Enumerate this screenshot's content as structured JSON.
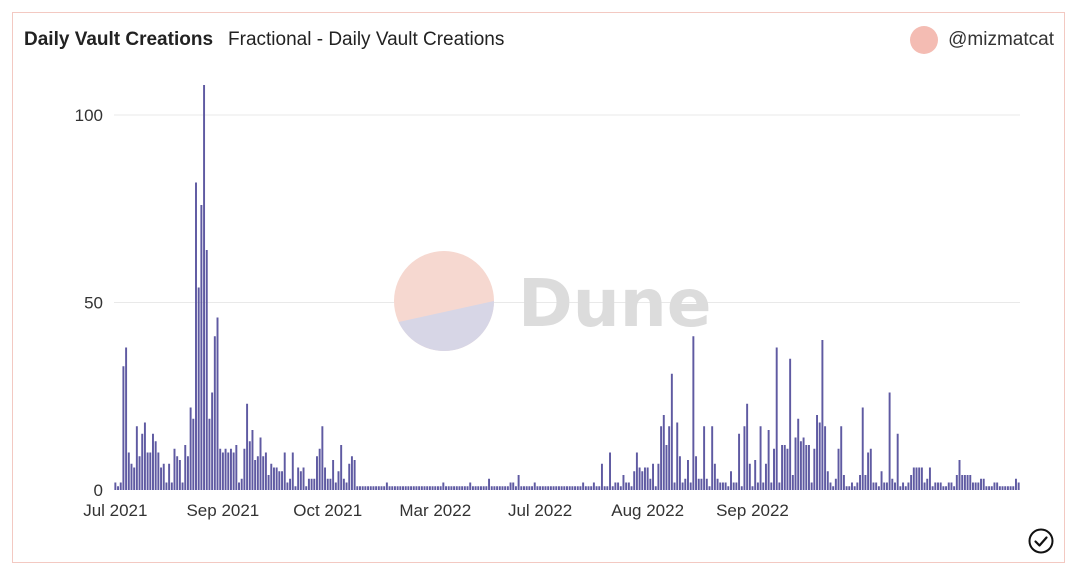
{
  "header": {
    "title": "Daily Vault Creations",
    "subtitle": "Fractional - Daily Vault Creations",
    "author": "@mizmatcat"
  },
  "watermark": {
    "text": "Dune"
  },
  "colors": {
    "bar": "#5f5aa2",
    "grid": "#e9e9e9",
    "avatar": "#f4bcb3",
    "card_border": "#f3c9c2",
    "watermark_top": "#f6d8d0",
    "watermark_bottom": "#d7d6e6",
    "watermark_text": "#dcdcdc"
  },
  "icons": {
    "status": "check-circle-icon",
    "logo": "dune-logo-icon"
  },
  "chart_data": {
    "type": "bar",
    "title": "Daily Vault Creations",
    "subtitle": "Fractional - Daily Vault Creations",
    "xlabel": "",
    "ylabel": "",
    "ylim": [
      0,
      108
    ],
    "yticks": [
      0,
      50,
      100
    ],
    "grid": true,
    "legend": "none",
    "x_ticks": [
      {
        "label": "Jul 2021",
        "index": 0
      },
      {
        "label": "Sep 2021",
        "index": 40
      },
      {
        "label": "Oct 2021",
        "index": 79
      },
      {
        "label": "Mar 2022",
        "index": 119
      },
      {
        "label": "Jul 2022",
        "index": 158
      },
      {
        "label": "Aug 2022",
        "index": 198
      },
      {
        "label": "Sep 2022",
        "index": 237
      }
    ],
    "series": [
      {
        "values": [
          2,
          1,
          2,
          33,
          38,
          10,
          7,
          6,
          17,
          9,
          15,
          18,
          10,
          10,
          15,
          13,
          10,
          6,
          7,
          2,
          7,
          2,
          11,
          9,
          8,
          2,
          12,
          9,
          22,
          19,
          82,
          54,
          76,
          108,
          64,
          19,
          26,
          41,
          46,
          11,
          10,
          11,
          10,
          11,
          10,
          12,
          2,
          3,
          11,
          23,
          13,
          16,
          8,
          9,
          14,
          9,
          10,
          4,
          7,
          6,
          6,
          5,
          5,
          10,
          2,
          3,
          10,
          1,
          6,
          5,
          6,
          1,
          3,
          3,
          3,
          9,
          11,
          17,
          6,
          3,
          3,
          8,
          2,
          5,
          12,
          3,
          2,
          7,
          9,
          8,
          1,
          1,
          1,
          1,
          1,
          1,
          1,
          1,
          1,
          1,
          1,
          2,
          1,
          1,
          1,
          1,
          1,
          1,
          1,
          1,
          1,
          1,
          1,
          1,
          1,
          1,
          1,
          1,
          1,
          1,
          1,
          1,
          2,
          1,
          1,
          1,
          1,
          1,
          1,
          1,
          1,
          1,
          2,
          1,
          1,
          1,
          1,
          1,
          1,
          3,
          1,
          1,
          1,
          1,
          1,
          1,
          1,
          2,
          2,
          1,
          4,
          1,
          1,
          1,
          1,
          1,
          2,
          1,
          1,
          1,
          1,
          1,
          1,
          1,
          1,
          1,
          1,
          1,
          1,
          1,
          1,
          1,
          1,
          1,
          2,
          1,
          1,
          1,
          2,
          1,
          1,
          7,
          1,
          1,
          10,
          1,
          2,
          2,
          1,
          4,
          2,
          2,
          1,
          5,
          10,
          6,
          5,
          6,
          6,
          3,
          7,
          1,
          7,
          17,
          20,
          12,
          17,
          31,
          2,
          18,
          9,
          2,
          3,
          8,
          2,
          41,
          9,
          3,
          3,
          17,
          3,
          1,
          17,
          7,
          3,
          2,
          2,
          2,
          1,
          5,
          2,
          2,
          15,
          1,
          17,
          23,
          7,
          1,
          8,
          2,
          17,
          2,
          7,
          16,
          2,
          11,
          38,
          2,
          12,
          12,
          11,
          35,
          4,
          14,
          19,
          13,
          14,
          12,
          12,
          2,
          11,
          20,
          18,
          40,
          17,
          5,
          2,
          1,
          3,
          11,
          17,
          4,
          1,
          1,
          2,
          1,
          2,
          4,
          22,
          4,
          10,
          11,
          2,
          2,
          1,
          5,
          2,
          2,
          26,
          3,
          2,
          15,
          1,
          2,
          1,
          2,
          4,
          6,
          6,
          6,
          6,
          2,
          3,
          6,
          1,
          2,
          2,
          2,
          1,
          1,
          2,
          2,
          1,
          4,
          8,
          4,
          4,
          4,
          4,
          2,
          2,
          2,
          3,
          3,
          1,
          1,
          1,
          2,
          2,
          1,
          1,
          1,
          1,
          1,
          1,
          3,
          2
        ]
      }
    ]
  }
}
